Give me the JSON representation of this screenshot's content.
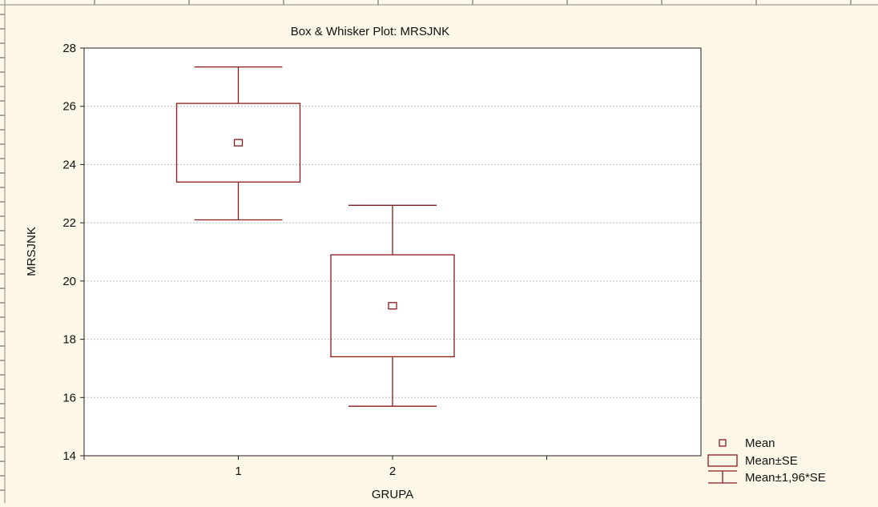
{
  "chart_data": {
    "type": "box",
    "title": "Box & Whisker Plot: MRSJNK",
    "xlabel": "GRUPA",
    "ylabel": "MRSJNK",
    "categories": [
      "1",
      "2"
    ],
    "ylim": [
      14,
      28
    ],
    "yticks": [
      "14",
      "16",
      "18",
      "20",
      "22",
      "24",
      "26",
      "28"
    ],
    "grid": true,
    "series": [
      {
        "category": "1",
        "mean": 24.75,
        "se_low": 23.4,
        "se_high": 26.1,
        "ci_low": 22.1,
        "ci_high": 27.35
      },
      {
        "category": "2",
        "mean": 19.15,
        "se_low": 17.4,
        "se_high": 20.9,
        "ci_low": 15.7,
        "ci_high": 22.6
      }
    ],
    "legend": {
      "position": "bottom-right",
      "items": [
        "Mean",
        "Mean±SE",
        "Mean±1,96*SE"
      ]
    },
    "colors": {
      "mark": "#8b1a1a",
      "background": "#fdf7e8",
      "plot": "#ffffff"
    }
  }
}
